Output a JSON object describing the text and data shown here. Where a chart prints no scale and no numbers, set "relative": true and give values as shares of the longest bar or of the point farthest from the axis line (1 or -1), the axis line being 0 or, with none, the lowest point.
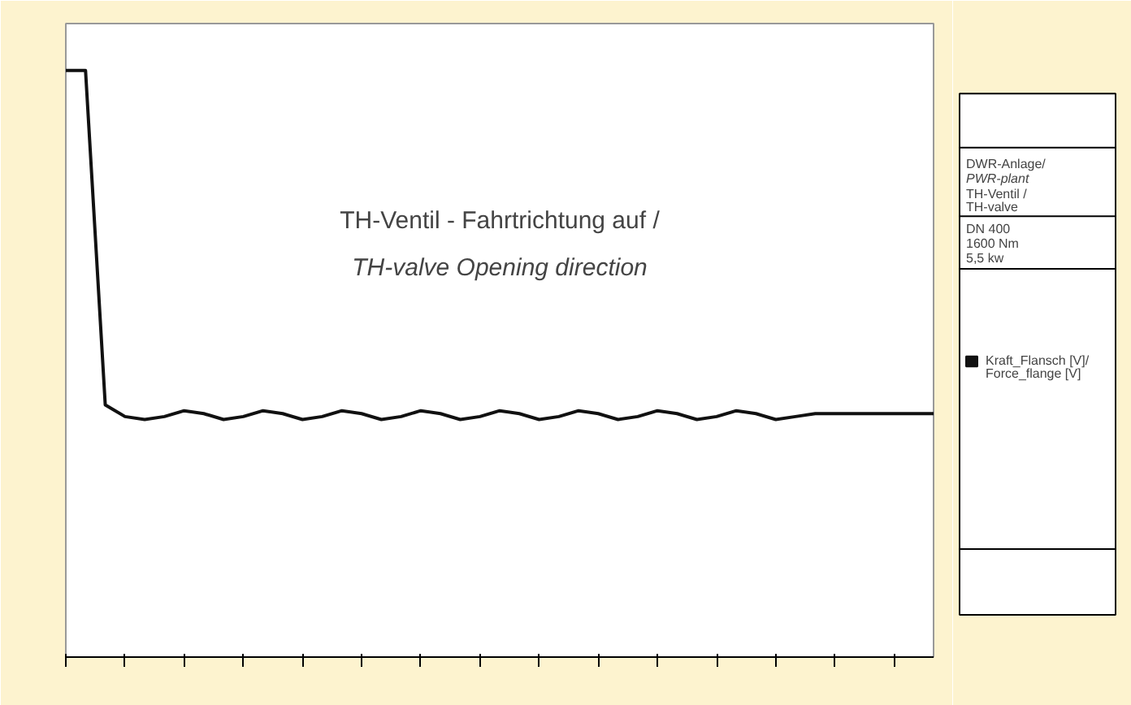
{
  "chart_data": {
    "type": "line",
    "relative": true,
    "categories": [
      null,
      null,
      null,
      null,
      null,
      null,
      null,
      null,
      null,
      null,
      null,
      null,
      null,
      null,
      null,
      null,
      null,
      null,
      null,
      null,
      null,
      null,
      null,
      null,
      null,
      null,
      null,
      null,
      null,
      null,
      null,
      null,
      null,
      null,
      null,
      null,
      null,
      null,
      null,
      null,
      null,
      null,
      null,
      null,
      null
    ],
    "series": [
      {
        "name": "Kraft_Flansch [V]/ Force_flange [V]",
        "color": "#111111",
        "values": [
          1,
          1,
          0.43,
          0.41,
          0.405,
          0.41,
          0.42,
          0.415,
          0.405,
          0.41,
          0.42,
          0.415,
          0.405,
          0.41,
          0.42,
          0.415,
          0.405,
          0.41,
          0.42,
          0.415,
          0.405,
          0.41,
          0.42,
          0.415,
          0.405,
          0.41,
          0.42,
          0.415,
          0.405,
          0.41,
          0.42,
          0.415,
          0.405,
          0.41,
          0.42,
          0.415,
          0.405,
          0.41,
          0.415,
          0.415,
          0.415,
          0.415,
          0.415,
          0.415,
          0.415
        ]
      }
    ],
    "annotations": [
      "TH-Ventil - Fahrtrichtung auf /",
      "TH-valve Opening direction",
      "DWR-Anlage/",
      "PWR-plant",
      "TH-Ventil /",
      "TH-valve",
      "DN 400",
      "1600 Nm",
      "5,5 kw"
    ],
    "legend": "right",
    "grid": false,
    "marker": "none",
    "line_style": "solid"
  }
}
